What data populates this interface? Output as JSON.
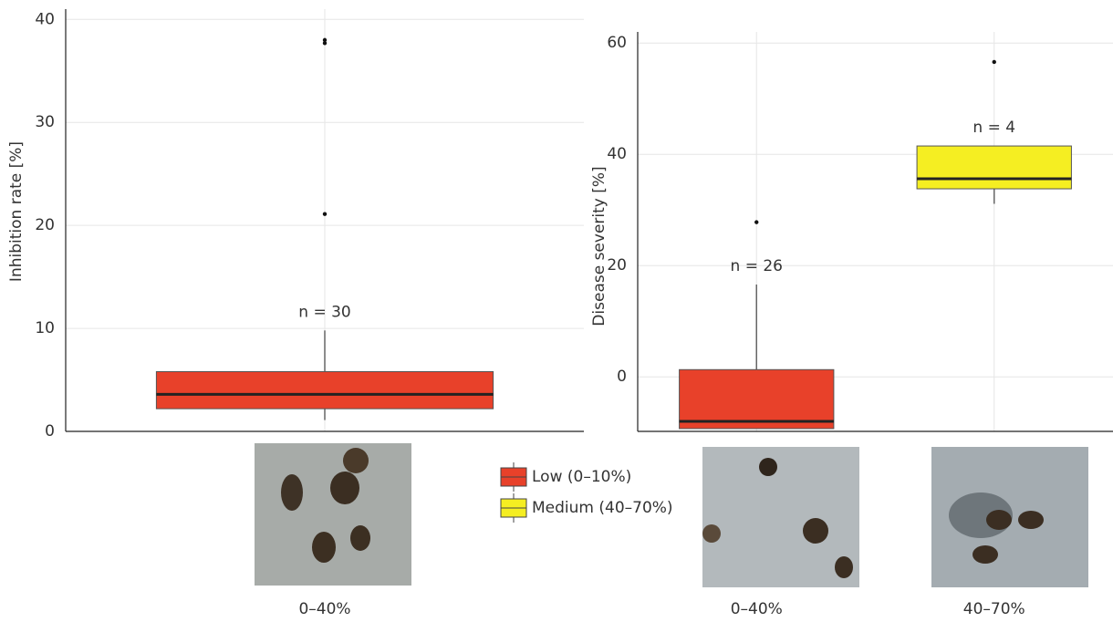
{
  "chart_data": [
    {
      "type": "box",
      "ylabel": "Inhibition rate [%]",
      "ylim": [
        0,
        41
      ],
      "yticks": [
        0,
        10,
        20,
        30,
        40
      ],
      "grid": true,
      "categories": [
        "0–40%"
      ],
      "boxes": [
        {
          "color": "#e8412a",
          "q1": 2.2,
          "median": 3.6,
          "q3": 5.8,
          "whisker_low": 1.1,
          "whisker_high": 9.8,
          "outliers": [
            21.1,
            37.7,
            38.0
          ],
          "annotation": "n = 30"
        }
      ]
    },
    {
      "type": "box",
      "ylabel": "Disease severity [%]",
      "ylim": [
        -9.8,
        62
      ],
      "yticks": [
        0,
        20,
        40,
        60
      ],
      "grid": true,
      "categories": [
        "0–40%",
        "40–70%"
      ],
      "boxes": [
        {
          "color": "#e8412a",
          "q1": -9.3,
          "median": -8.0,
          "q3": 1.3,
          "whisker_low": null,
          "whisker_high": 16.6,
          "outliers": [
            27.8
          ],
          "annotation": "n = 26"
        },
        {
          "color": "#f5ee22",
          "q1": 33.8,
          "median": 35.6,
          "q3": 41.5,
          "whisker_low": 31.1,
          "whisker_high": null,
          "outliers": [
            56.6
          ],
          "annotation": "n = 4"
        }
      ]
    }
  ],
  "legend": {
    "entries": [
      {
        "name": "Low (0–10%)",
        "color": "#e8412a"
      },
      {
        "name": "Medium (40–70%)",
        "color": "#f5ee22"
      }
    ]
  }
}
